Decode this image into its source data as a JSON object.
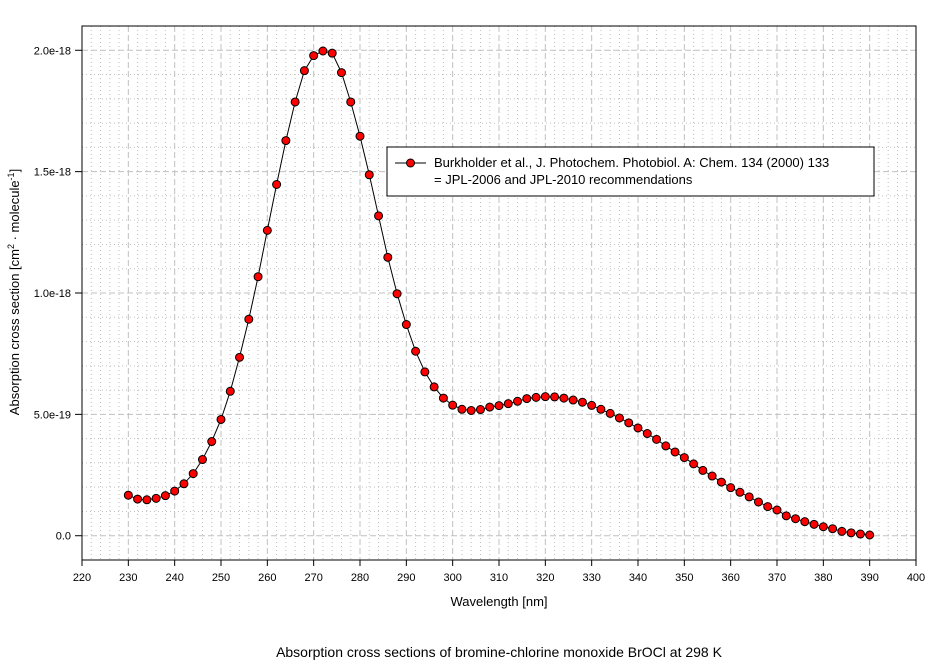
{
  "chart_data": {
    "type": "line",
    "title": "Absorption cross sections of bromine-chlorine monoxide BrOCl at 298 K",
    "xlabel": "Wavelength [nm]",
    "ylabel": "Absorption cross section [cm² · molecule⁻¹]",
    "ylabel_parts": {
      "main": "Absorption cross section [cm",
      "sup1": "2",
      "mid": " · molecule",
      "sup2": "-1",
      "end": "]"
    },
    "xlim": [
      220,
      400
    ],
    "ylim": [
      -1e-19,
      2.1e-18
    ],
    "x_ticks": [
      220,
      230,
      240,
      250,
      260,
      270,
      280,
      290,
      300,
      310,
      320,
      330,
      340,
      350,
      360,
      370,
      380,
      390,
      400
    ],
    "y_ticks": [
      0,
      5e-19,
      1e-18,
      1.5e-18,
      2e-18
    ],
    "y_tick_labels": [
      "0.0",
      "5.0e-19",
      "1.0e-18",
      "1.5e-18",
      "2.0e-18"
    ],
    "grid": true,
    "legend_position": "upper-right",
    "colors": {
      "marker_fill": "#ff0000",
      "marker_edge": "#000000",
      "line": "#000000",
      "grid": "#c0c0c0"
    },
    "series": [
      {
        "name": "Burkholder et al., J. Photochem. Photobiol. A: Chem. 134 (2000) 133",
        "name_line2": "= JPL-2006 and JPL-2010 recommendations",
        "x": [
          230,
          232,
          234,
          236,
          238,
          240,
          242,
          244,
          246,
          248,
          250,
          252,
          254,
          256,
          258,
          260,
          262,
          264,
          266,
          268,
          270,
          272,
          274,
          276,
          278,
          280,
          282,
          284,
          286,
          288,
          290,
          292,
          294,
          296,
          298,
          300,
          302,
          304,
          306,
          308,
          310,
          312,
          314,
          316,
          318,
          320,
          322,
          324,
          326,
          328,
          330,
          332,
          334,
          336,
          338,
          340,
          342,
          344,
          346,
          348,
          350,
          352,
          354,
          356,
          358,
          360,
          362,
          364,
          366,
          368,
          370,
          372,
          374,
          376,
          378,
          380,
          382,
          384,
          386,
          388,
          390
        ],
        "y": [
          1.67e-19,
          1.51e-19,
          1.48e-19,
          1.54e-19,
          1.65e-19,
          1.84e-19,
          2.14e-19,
          2.56e-19,
          3.14e-19,
          3.88e-19,
          4.79e-19,
          5.95e-19,
          7.35e-19,
          8.92e-19,
          1.067e-18,
          1.258e-18,
          1.447e-18,
          1.628e-18,
          1.787e-18,
          1.916e-18,
          1.978e-18,
          1.997e-18,
          1.988e-18,
          1.908e-18,
          1.787e-18,
          1.646e-18,
          1.487e-18,
          1.318e-18,
          1.147e-18,
          9.97e-19,
          8.7e-19,
          7.6e-19,
          6.75e-19,
          6.13e-19,
          5.67e-19,
          5.38e-19,
          5.21e-19,
          5.16e-19,
          5.2e-19,
          5.3e-19,
          5.36e-19,
          5.44e-19,
          5.54e-19,
          5.65e-19,
          5.7e-19,
          5.73e-19,
          5.72e-19,
          5.67e-19,
          5.59e-19,
          5.5e-19,
          5.37e-19,
          5.21e-19,
          5.04e-19,
          4.85e-19,
          4.65e-19,
          4.44e-19,
          4.21e-19,
          3.97e-19,
          3.7e-19,
          3.45e-19,
          3.22e-19,
          2.96e-19,
          2.69e-19,
          2.46e-19,
          2.21e-19,
          1.98e-19,
          1.79e-19,
          1.6e-19,
          1.39e-19,
          1.2e-19,
          1.06e-19,
          8.2e-20,
          7e-20,
          5.8e-20,
          4.7e-20,
          3.7e-20,
          2.9e-20,
          1.8e-20,
          1.2e-20,
          7e-21,
          3e-21
        ]
      }
    ]
  }
}
